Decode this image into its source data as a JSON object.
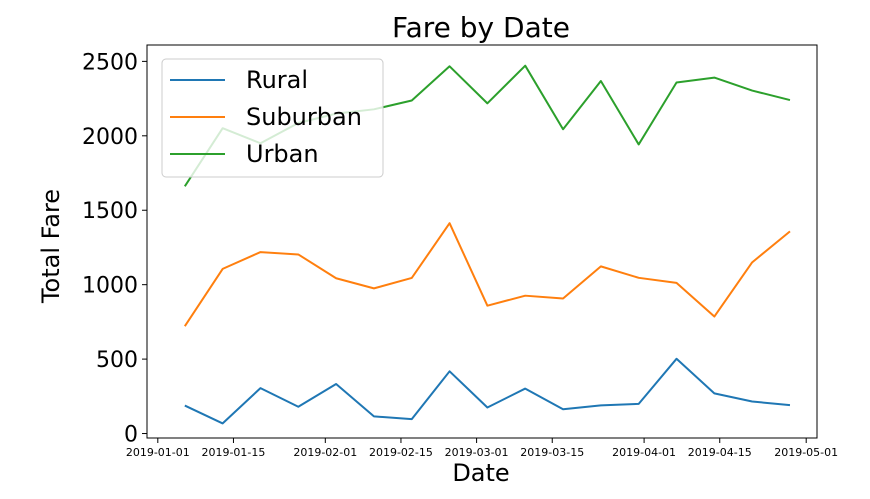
{
  "chart_data": {
    "type": "line",
    "title": "Fare by Date",
    "xlabel": "Date",
    "ylabel": "Total Fare",
    "xlim": [
      "2018-12-30",
      "2019-05-03"
    ],
    "ylim": [
      -30,
      2610
    ],
    "yticks": [
      0,
      500,
      1000,
      1500,
      2000,
      2500
    ],
    "xticks": [
      "2019-01-01",
      "2019-01-15",
      "2019-02-01",
      "2019-02-15",
      "2019-03-01",
      "2019-03-15",
      "2019-04-01",
      "2019-04-15",
      "2019-05-01"
    ],
    "legend_position": "upper-left",
    "x": [
      "2019-01-06",
      "2019-01-13",
      "2019-01-20",
      "2019-01-27",
      "2019-02-03",
      "2019-02-10",
      "2019-02-17",
      "2019-02-24",
      "2019-03-03",
      "2019-03-10",
      "2019-03-17",
      "2019-03-24",
      "2019-03-31",
      "2019-04-07",
      "2019-04-14",
      "2019-04-21",
      "2019-04-28"
    ],
    "series": [
      {
        "name": "Rural",
        "color": "#1f77b4",
        "values": [
          188,
          68,
          305,
          180,
          333,
          115,
          97,
          418,
          175,
          302,
          163,
          189,
          199,
          502,
          270,
          215,
          191
        ]
      },
      {
        "name": "Suburban",
        "color": "#ff7f0e",
        "values": [
          721,
          1106,
          1219,
          1203,
          1043,
          975,
          1045,
          1413,
          859,
          926,
          907,
          1123,
          1046,
          1012,
          786,
          1150,
          1358
        ]
      },
      {
        "name": "Urban",
        "color": "#2ca02c",
        "values": [
          1661,
          2051,
          1950,
          2086,
          2149,
          2178,
          2237,
          2467,
          2218,
          2471,
          2044,
          2368,
          1942,
          2358,
          2391,
          2304,
          2240
        ]
      }
    ]
  }
}
